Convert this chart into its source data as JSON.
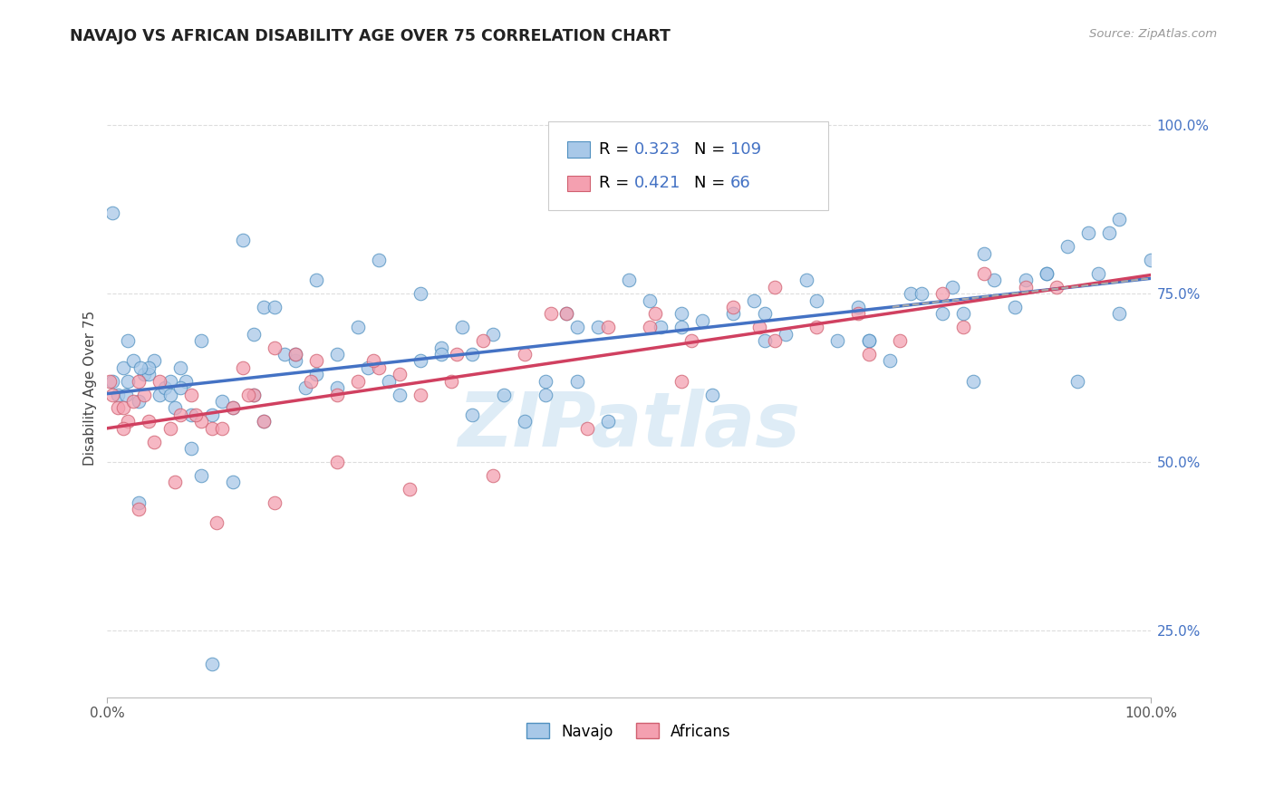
{
  "title": "NAVAJO VS AFRICAN DISABILITY AGE OVER 75 CORRELATION CHART",
  "source": "Source: ZipAtlas.com",
  "ylabel": "Disability Age Over 75",
  "legend_navajo_R": 0.323,
  "legend_navajo_N": 109,
  "legend_africans_R": 0.421,
  "legend_africans_N": 66,
  "navajo_color": "#a8c8e8",
  "navajo_edge_color": "#5090c0",
  "african_color": "#f4a0b0",
  "african_edge_color": "#d06070",
  "navajo_line_color": "#4472c4",
  "african_line_color": "#d04060",
  "right_tick_color": "#4472c4",
  "watermark_color": "#c8e0f0",
  "navajo_x": [
    0.5,
    1.0,
    1.5,
    2.0,
    2.5,
    3.0,
    3.5,
    4.0,
    4.5,
    5.0,
    5.5,
    6.0,
    6.5,
    7.0,
    7.5,
    8.0,
    9.0,
    10.0,
    11.0,
    12.0,
    13.0,
    14.0,
    15.0,
    16.0,
    17.0,
    18.0,
    19.0,
    20.0,
    22.0,
    24.0,
    26.0,
    28.0,
    30.0,
    32.0,
    34.0,
    35.0,
    37.0,
    40.0,
    42.0,
    44.0,
    45.0,
    47.0,
    50.0,
    52.0,
    55.0,
    57.0,
    60.0,
    62.0,
    65.0,
    67.0,
    70.0,
    72.0,
    75.0,
    77.0,
    80.0,
    82.0,
    84.0,
    85.0,
    87.0,
    90.0,
    92.0,
    94.0,
    95.0,
    97.0,
    100.0,
    3.0,
    2.0,
    8.0,
    15.0,
    25.0,
    35.0,
    45.0,
    55.0,
    63.0,
    73.0,
    81.0,
    90.0,
    97.0,
    7.0,
    12.0,
    18.0,
    27.0,
    38.0,
    48.0,
    58.0,
    68.0,
    78.0,
    88.0,
    96.0,
    4.0,
    9.0,
    14.0,
    22.0,
    32.0,
    42.0,
    53.0,
    63.0,
    73.0,
    83.0,
    93.0,
    0.5,
    1.8,
    3.2,
    6.0,
    10.0,
    20.0,
    30.0
  ],
  "navajo_y": [
    87.0,
    60.0,
    64.0,
    62.0,
    65.0,
    59.0,
    63.0,
    63.0,
    65.0,
    60.0,
    61.0,
    60.0,
    58.0,
    64.0,
    62.0,
    57.0,
    68.0,
    57.0,
    59.0,
    58.0,
    83.0,
    69.0,
    73.0,
    73.0,
    66.0,
    65.0,
    61.0,
    77.0,
    66.0,
    70.0,
    80.0,
    60.0,
    75.0,
    67.0,
    70.0,
    57.0,
    69.0,
    56.0,
    62.0,
    72.0,
    70.0,
    70.0,
    77.0,
    74.0,
    72.0,
    71.0,
    72.0,
    74.0,
    69.0,
    77.0,
    68.0,
    73.0,
    65.0,
    75.0,
    72.0,
    72.0,
    81.0,
    77.0,
    73.0,
    78.0,
    82.0,
    84.0,
    78.0,
    72.0,
    80.0,
    44.0,
    68.0,
    52.0,
    56.0,
    64.0,
    66.0,
    62.0,
    70.0,
    68.0,
    68.0,
    76.0,
    78.0,
    86.0,
    61.0,
    47.0,
    66.0,
    62.0,
    60.0,
    56.0,
    60.0,
    74.0,
    75.0,
    77.0,
    84.0,
    64.0,
    48.0,
    60.0,
    61.0,
    66.0,
    60.0,
    70.0,
    72.0,
    68.0,
    62.0,
    62.0,
    62.0,
    60.0,
    64.0,
    62.0,
    20.0,
    63.0,
    65.0
  ],
  "african_x": [
    0.2,
    0.5,
    1.0,
    1.5,
    2.0,
    2.5,
    3.0,
    3.5,
    4.0,
    5.0,
    6.0,
    7.0,
    8.0,
    9.0,
    10.0,
    11.0,
    12.0,
    13.0,
    14.0,
    15.0,
    16.0,
    18.0,
    20.0,
    22.0,
    24.0,
    26.0,
    28.0,
    30.0,
    33.0,
    36.0,
    40.0,
    44.0,
    48.0,
    52.0,
    56.0,
    60.0,
    64.0,
    68.0,
    72.0,
    76.0,
    80.0,
    84.0,
    88.0,
    3.0,
    6.5,
    10.5,
    16.0,
    22.0,
    29.0,
    37.0,
    46.0,
    55.0,
    64.0,
    73.0,
    82.0,
    91.0,
    1.5,
    4.5,
    8.5,
    13.5,
    19.5,
    25.5,
    33.5,
    42.5,
    52.5,
    62.5
  ],
  "african_y": [
    62.0,
    60.0,
    58.0,
    58.0,
    56.0,
    59.0,
    62.0,
    60.0,
    56.0,
    62.0,
    55.0,
    57.0,
    60.0,
    56.0,
    55.0,
    55.0,
    58.0,
    64.0,
    60.0,
    56.0,
    67.0,
    66.0,
    65.0,
    60.0,
    62.0,
    64.0,
    63.0,
    60.0,
    62.0,
    68.0,
    66.0,
    72.0,
    70.0,
    70.0,
    68.0,
    73.0,
    76.0,
    70.0,
    72.0,
    68.0,
    75.0,
    78.0,
    76.0,
    43.0,
    47.0,
    41.0,
    44.0,
    50.0,
    46.0,
    48.0,
    55.0,
    62.0,
    68.0,
    66.0,
    70.0,
    76.0,
    55.0,
    53.0,
    57.0,
    60.0,
    62.0,
    65.0,
    66.0,
    72.0,
    72.0,
    70.0
  ]
}
